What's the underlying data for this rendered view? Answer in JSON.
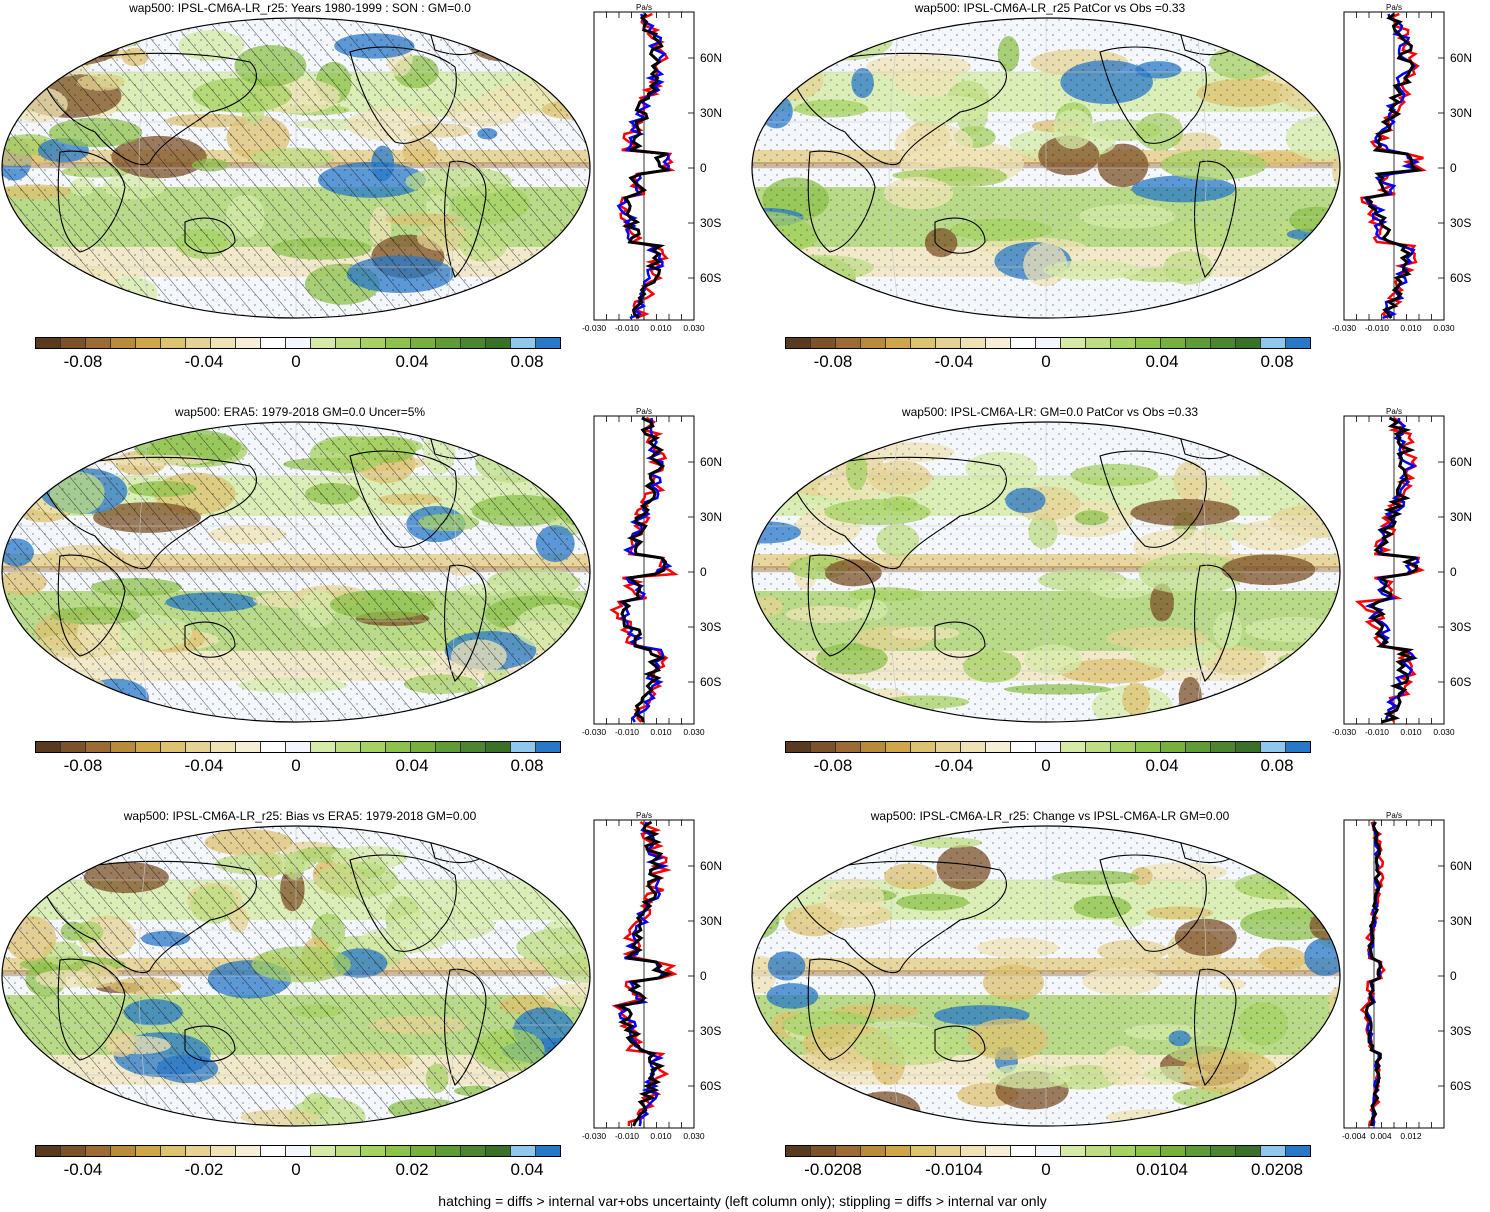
{
  "footer": "hatching = diffs > internal var+obs uncertainty (left column only); stippling = diffs > internal var only",
  "palette": [
    "#5a3a1e",
    "#7d5228",
    "#9c6b34",
    "#b88b3a",
    "#cfa649",
    "#ddc270",
    "#e6d394",
    "#efe3b5",
    "#f6efd5",
    "#ffffff",
    "#f3f7fd",
    "#d6eba8",
    "#bfde84",
    "#a6d163",
    "#8dc24c",
    "#76b03d",
    "#5f9b36",
    "#4b8530",
    "#3a7129",
    "#8fc8ec",
    "#2878c8"
  ],
  "profile_colors": {
    "model": "#ff0000",
    "obs": "#0000ff",
    "mean": "#000000"
  },
  "lat_labels": [
    "60N",
    "30N",
    "0",
    "30S",
    "60S"
  ],
  "profile_unit": "Pa/s",
  "panels": [
    {
      "title": "wap500: IPSL-CM6A-LR_r25: Years 1980-1999 : SON : GM=0.0",
      "colorbar_labels": [
        "-0.08",
        "-0.04",
        "0",
        "0.04",
        "0.08"
      ],
      "profile_ticks": [
        "-0.030",
        "-0.010",
        "0.010",
        "0.030"
      ],
      "hatched": true
    },
    {
      "title": "wap500: IPSL-CM6A-LR_r25 PatCor vs Obs =0.33",
      "colorbar_labels": [
        "-0.08",
        "-0.04",
        "0",
        "0.04",
        "0.08"
      ],
      "profile_ticks": [
        "-0.030",
        "-0.010",
        "0.010",
        "0.030"
      ],
      "hatched": false
    },
    {
      "title": "wap500: ERA5: 1979-2018 GM=0.0 Uncer=5%",
      "colorbar_labels": [
        "-0.08",
        "-0.04",
        "0",
        "0.04",
        "0.08"
      ],
      "profile_ticks": [
        "-0.030",
        "-0.010",
        "0.010",
        "0.030"
      ],
      "hatched": true
    },
    {
      "title": "wap500: IPSL-CM6A-LR: GM=0.0 PatCor vs Obs =0.33",
      "colorbar_labels": [
        "-0.08",
        "-0.04",
        "0",
        "0.04",
        "0.08"
      ],
      "profile_ticks": [
        "-0.030",
        "-0.010",
        "0.010",
        "0.030"
      ],
      "hatched": false
    },
    {
      "title": "wap500: IPSL-CM6A-LR_r25: Bias vs ERA5: 1979-2018  GM=0.00",
      "colorbar_labels": [
        "-0.04",
        "-0.02",
        "0",
        "0.02",
        "0.04"
      ],
      "profile_ticks": [
        "-0.030",
        "-0.010",
        "0.010",
        "0.030"
      ],
      "hatched": true
    },
    {
      "title": "wap500: IPSL-CM6A-LR_r25: Change vs IPSL-CM6A-LR GM=0.00",
      "colorbar_labels": [
        "-0.0208",
        "-0.0104",
        "0",
        "0.0104",
        "0.0208"
      ],
      "profile_ticks": [
        "-0.004",
        "0.004",
        "0.012"
      ],
      "hatched": false
    }
  ]
}
